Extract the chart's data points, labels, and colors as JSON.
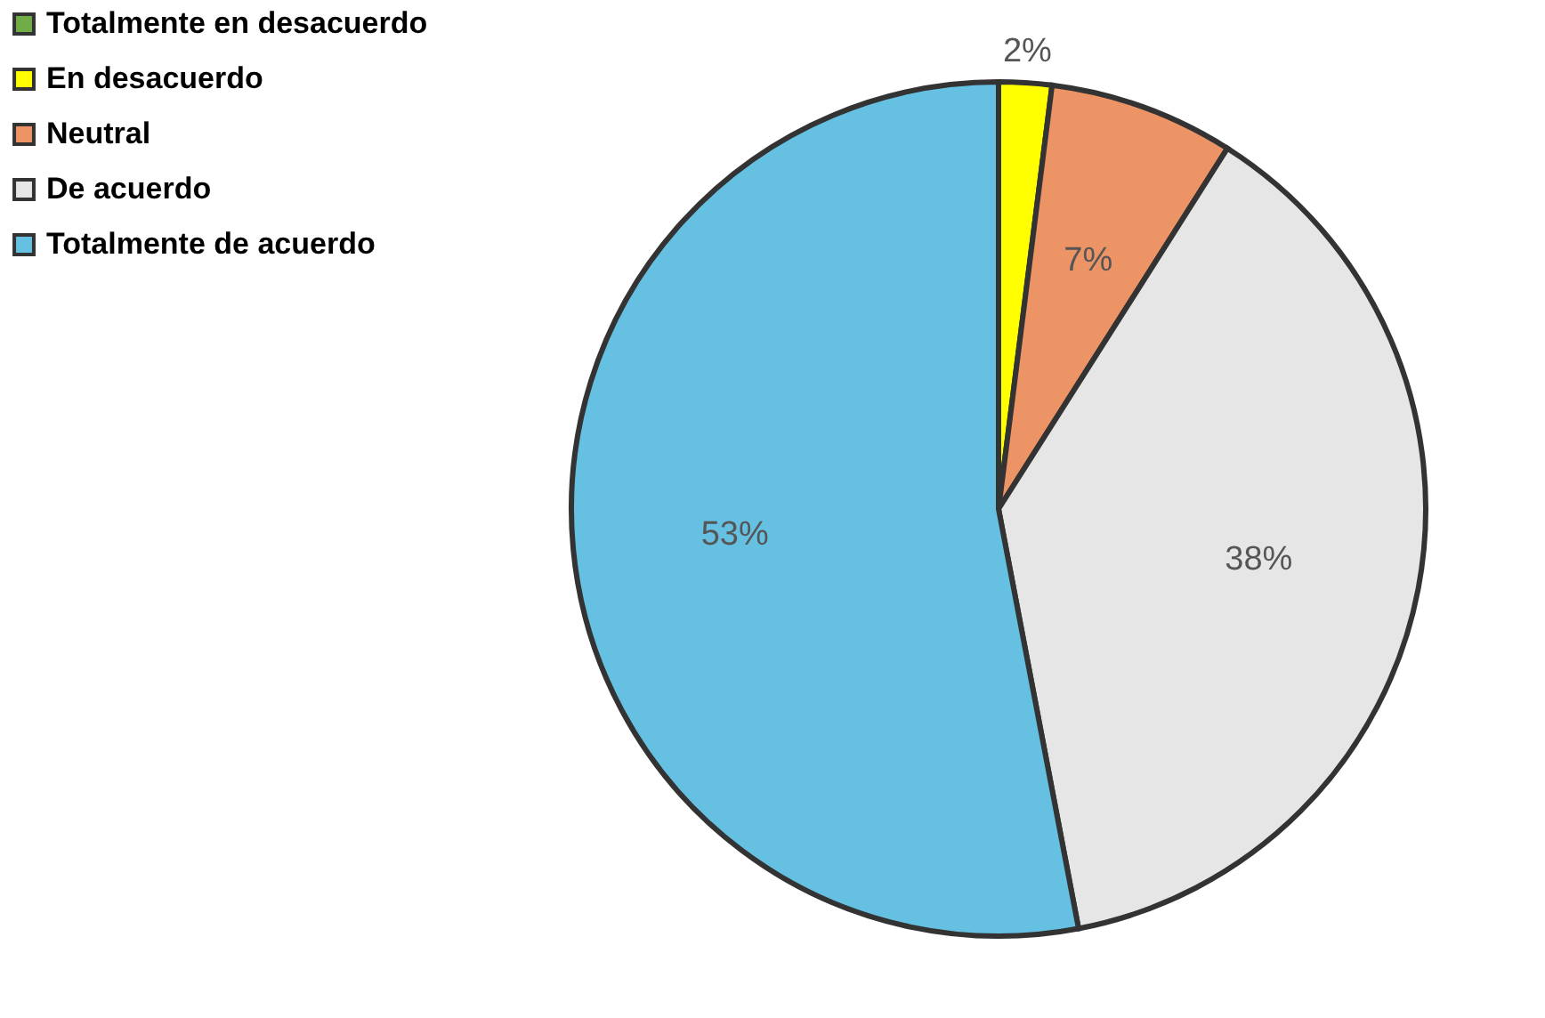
{
  "chart_data": {
    "type": "pie",
    "categories": [
      "Totalmente en desacuerdo",
      "En desacuerdo",
      "Neutral",
      "De acuerdo",
      "Totalmente de acuerdo"
    ],
    "values": [
      0,
      2,
      7,
      38,
      53
    ],
    "colors": [
      "#70ad47",
      "#ffff00",
      "#ed9466",
      "#e6e6e6",
      "#65c0e2"
    ],
    "value_labels": [
      null,
      "2%",
      "7%",
      "38%",
      "53%"
    ],
    "legend": "left"
  }
}
